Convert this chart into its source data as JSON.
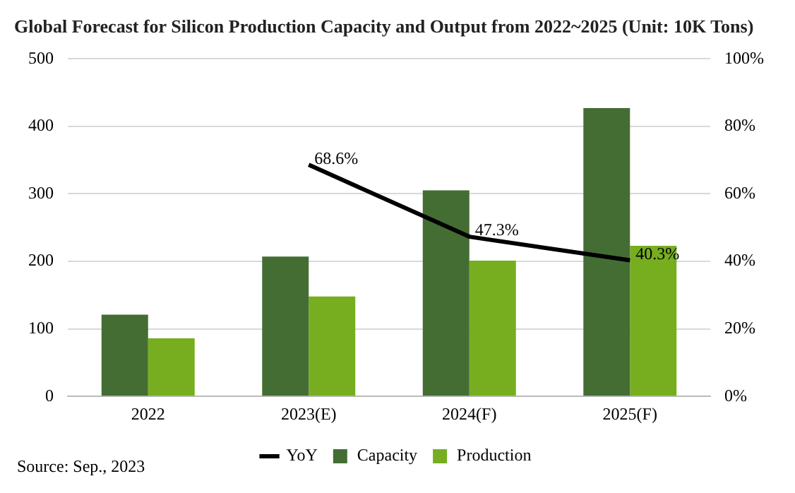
{
  "chart_data": {
    "type": "bar",
    "title": "Global Forecast for Silicon Production Capacity and Output from 2022~2025 (Unit: 10K Tons)",
    "categories": [
      "2022",
      "2023(E)",
      "2024(F)",
      "2025(F)"
    ],
    "series": [
      {
        "name": "Capacity",
        "color": "#446d34",
        "values": [
          121,
          207,
          305,
          427
        ]
      },
      {
        "name": "Production",
        "color": "#76ae20",
        "values": [
          86,
          148,
          201,
          223
        ]
      },
      {
        "name": "YoY",
        "type": "line",
        "axis": "y2",
        "color": "#000000",
        "marker": "none",
        "values": [
          null,
          68.6,
          47.3,
          40.3
        ],
        "value_labels": [
          null,
          "68.6%",
          "47.3%",
          "40.3%"
        ]
      }
    ],
    "ylim": [
      0,
      500
    ],
    "yticks": [
      0,
      100,
      200,
      300,
      400,
      500
    ],
    "y2lim": [
      0,
      100
    ],
    "y2ticks": [
      {
        "value": 0,
        "label": "0%"
      },
      {
        "value": 20,
        "label": "20%"
      },
      {
        "value": 40,
        "label": "40%"
      },
      {
        "value": 60,
        "label": "60%"
      },
      {
        "value": 80,
        "label": "80%"
      },
      {
        "value": 100,
        "label": "100%"
      }
    ],
    "grid": "y",
    "legend": "bottom",
    "annotations": [
      "Source: Sep., 2023"
    ]
  }
}
